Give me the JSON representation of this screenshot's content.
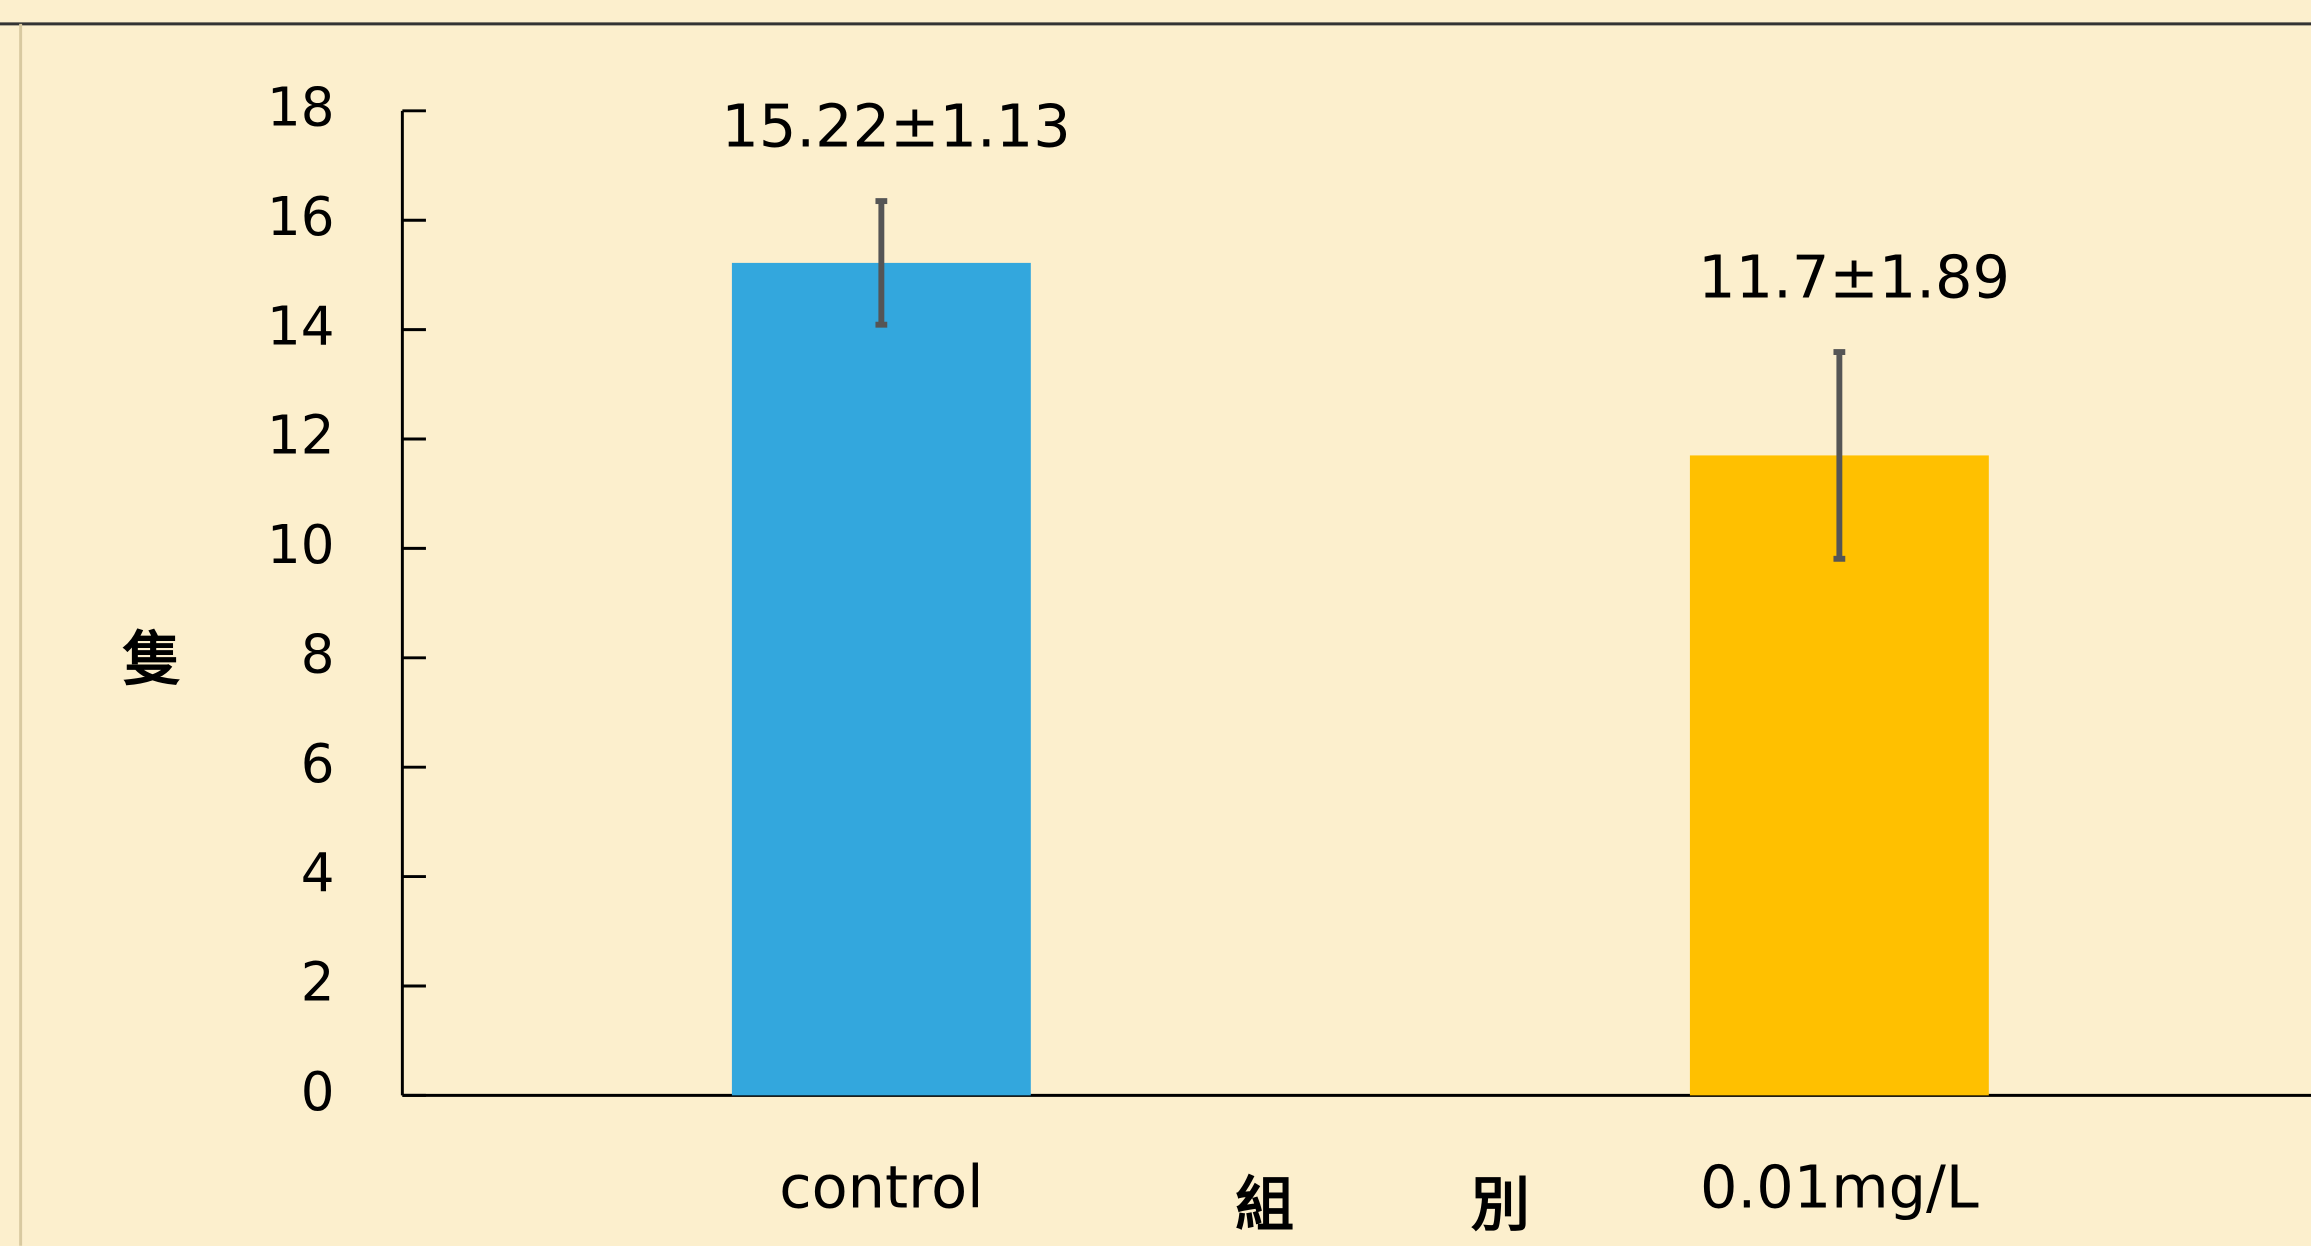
{
  "chart_data": {
    "type": "bar",
    "ylabel": "隻",
    "xlabel": "組　　　別",
    "categories": [
      "control",
      "0.01mg/L"
    ],
    "values": [
      15.22,
      11.7
    ],
    "errors": [
      1.13,
      1.89
    ],
    "value_labels": [
      "15.22±1.13",
      "11.7±1.89"
    ],
    "colors": [
      "#33a7dd",
      "#ffc000"
    ],
    "ylim": [
      0,
      18
    ],
    "yticks": [
      0,
      2,
      4,
      6,
      8,
      10,
      12,
      14,
      16,
      18
    ],
    "grid": false
  }
}
